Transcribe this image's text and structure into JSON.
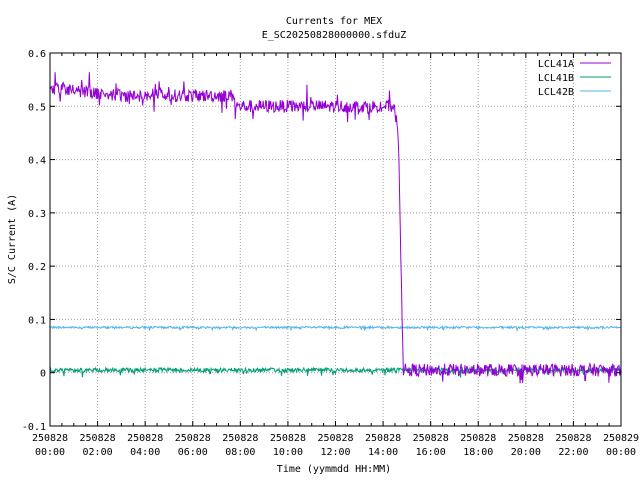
{
  "chart_data": {
    "type": "line",
    "title": "Currents for MEX",
    "subtitle": "E_SC20250828000000.sfduZ",
    "xlabel": "Time (yymmdd HH:MM)",
    "ylabel": "S/C Current (A)",
    "xlim": [
      0,
      24
    ],
    "ylim": [
      -0.1,
      0.6
    ],
    "yticks": [
      "-0.1",
      "0",
      "0.1",
      "0.2",
      "0.3",
      "0.4",
      "0.5",
      "0.6"
    ],
    "xticks": [
      {
        "date": "250828",
        "time": "00:00"
      },
      {
        "date": "250828",
        "time": "02:00"
      },
      {
        "date": "250828",
        "time": "04:00"
      },
      {
        "date": "250828",
        "time": "06:00"
      },
      {
        "date": "250828",
        "time": "08:00"
      },
      {
        "date": "250828",
        "time": "10:00"
      },
      {
        "date": "250828",
        "time": "12:00"
      },
      {
        "date": "250828",
        "time": "14:00"
      },
      {
        "date": "250828",
        "time": "16:00"
      },
      {
        "date": "250828",
        "time": "18:00"
      },
      {
        "date": "250828",
        "time": "20:00"
      },
      {
        "date": "250828",
        "time": "22:00"
      },
      {
        "date": "250829",
        "time": "00:00"
      }
    ],
    "grid": true,
    "legend_position": "top-right",
    "series": [
      {
        "name": "LCL41A",
        "color": "#9400d3",
        "x": [
          0,
          0.5,
          1,
          2,
          3,
          4,
          5,
          6,
          7,
          7.75,
          7.8,
          8,
          9,
          10,
          11,
          12,
          13,
          13.8,
          14,
          14.5,
          14.6,
          14.65,
          14.8,
          14.85,
          16,
          18,
          20,
          22,
          24
        ],
        "y": [
          0.53,
          0.535,
          0.53,
          0.525,
          0.52,
          0.52,
          0.52,
          0.52,
          0.52,
          0.52,
          0.5,
          0.5,
          0.5,
          0.5,
          0.5,
          0.5,
          0.5,
          0.5,
          0.5,
          0.5,
          0.455,
          0.44,
          0.1,
          0.005,
          0.005,
          0.005,
          0.005,
          0.005,
          0.005
        ]
      },
      {
        "name": "LCL41B",
        "color": "#009e73",
        "x": [
          0,
          24
        ],
        "y": [
          0.005,
          0.005
        ]
      },
      {
        "name": "LCL42B",
        "color": "#56b4e9",
        "x": [
          0,
          24
        ],
        "y": [
          0.085,
          0.085
        ]
      }
    ]
  }
}
